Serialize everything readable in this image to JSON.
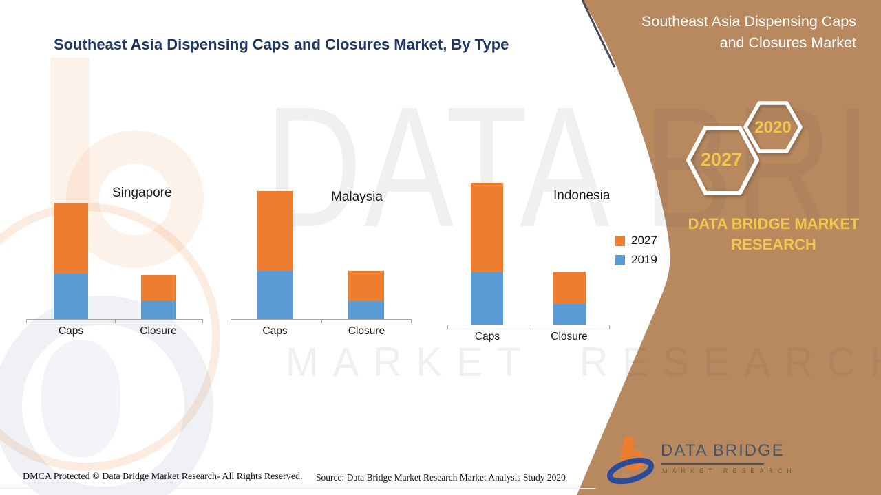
{
  "colors": {
    "panel_brown": "#B8895F",
    "series_2027": "#ED7D31",
    "series_2019": "#5B9BD5",
    "accent_gold": "#F2C54E",
    "title_navy": "#1F3864",
    "hexagon_outline": "#FFFFFF"
  },
  "header": {
    "main_title": "Southeast Asia Dispensing Caps and Closures Market, By Type",
    "panel_title_line1": "Southeast Asia Dispensing Caps",
    "panel_title_line2": "and Closures Market"
  },
  "side_panel": {
    "hexagon_front_year": "2027",
    "hexagon_back_year": "2020",
    "brand_line1": "DATA BRIDGE MARKET",
    "brand_line2": "RESEARCH"
  },
  "watermark": {
    "line1": "DATA BRIDGE",
    "line2": "MARKET RESEARCH"
  },
  "logo": {
    "title": "DATA BRIDGE",
    "subtitle": "MARKET RESEARCH"
  },
  "footer": {
    "dmca": "DMCA Protected © Data Bridge Market Research- All Rights Reserved.",
    "source": "Source: Data Bridge Market Research Market Analysis Study 2020"
  },
  "chart_data": {
    "type": "bar",
    "stacked": true,
    "title": "Southeast Asia Dispensing Caps and Closures Market, By Type",
    "value_axis": "none shown (values are relative heights estimated from pixels)",
    "legend": [
      "2027",
      "2019"
    ],
    "legend_position": "right",
    "grid": false,
    "groups": [
      {
        "country": "Singapore",
        "categories": [
          "Caps",
          "Closure"
        ],
        "series": [
          {
            "name": "2019",
            "values": [
              66,
              27
            ]
          },
          {
            "name": "2027",
            "values": [
              103,
              37
            ]
          }
        ]
      },
      {
        "country": "Malaysia",
        "categories": [
          "Caps",
          "Closure"
        ],
        "series": [
          {
            "name": "2019",
            "values": [
              70,
              26
            ]
          },
          {
            "name": "2027",
            "values": [
              116,
              44
            ]
          }
        ]
      },
      {
        "country": "Indonesia",
        "categories": [
          "Caps",
          "Closure"
        ],
        "series": [
          {
            "name": "2019",
            "values": [
              76,
              30
            ]
          },
          {
            "name": "2027",
            "values": [
              130,
              47
            ]
          }
        ]
      }
    ]
  }
}
